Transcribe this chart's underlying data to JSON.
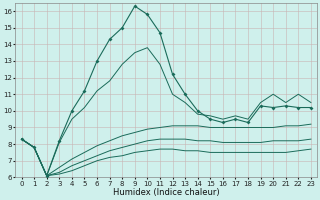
{
  "x": [
    0,
    1,
    2,
    3,
    4,
    5,
    6,
    7,
    8,
    9,
    10,
    11,
    12,
    13,
    14,
    15,
    16,
    17,
    18,
    19,
    20,
    21,
    22,
    23
  ],
  "line_main": [
    8.3,
    7.8,
    6.1,
    8.2,
    10.0,
    11.2,
    13.0,
    14.3,
    15.0,
    16.3,
    15.8,
    14.7,
    12.2,
    11.0,
    10.0,
    9.5,
    9.3,
    9.5,
    9.3,
    10.3,
    10.2,
    10.3,
    10.2,
    10.2
  ],
  "line_upper": [
    8.3,
    7.8,
    6.1,
    8.1,
    9.5,
    10.2,
    11.2,
    11.8,
    12.8,
    13.5,
    13.8,
    12.8,
    11.0,
    10.5,
    9.8,
    9.7,
    9.5,
    9.7,
    9.5,
    10.5,
    11.0,
    10.5,
    11.0,
    10.5
  ],
  "line_ref1": [
    8.3,
    7.8,
    6.1,
    6.6,
    7.1,
    7.5,
    7.9,
    8.2,
    8.5,
    8.7,
    8.9,
    9.0,
    9.1,
    9.1,
    9.1,
    9.0,
    9.0,
    9.0,
    9.0,
    9.0,
    9.0,
    9.1,
    9.1,
    9.2
  ],
  "line_ref2": [
    8.3,
    7.8,
    6.1,
    6.3,
    6.7,
    7.0,
    7.3,
    7.6,
    7.8,
    8.0,
    8.2,
    8.3,
    8.3,
    8.3,
    8.2,
    8.2,
    8.1,
    8.1,
    8.1,
    8.1,
    8.2,
    8.2,
    8.2,
    8.3
  ],
  "line_ref3": [
    8.3,
    7.8,
    6.1,
    6.2,
    6.4,
    6.7,
    7.0,
    7.2,
    7.3,
    7.5,
    7.6,
    7.7,
    7.7,
    7.6,
    7.6,
    7.5,
    7.5,
    7.5,
    7.5,
    7.5,
    7.5,
    7.5,
    7.6,
    7.7
  ],
  "bg_color": "#cff0ec",
  "line_color": "#1a6b5a",
  "grid_color": "#c8b4b4",
  "xlabel": "Humidex (Indice chaleur)",
  "ylim": [
    6,
    16.5
  ],
  "xlim": [
    -0.5,
    23.5
  ],
  "yticks": [
    6,
    7,
    8,
    9,
    10,
    11,
    12,
    13,
    14,
    15,
    16
  ],
  "xticks": [
    0,
    1,
    2,
    3,
    4,
    5,
    6,
    7,
    8,
    9,
    10,
    11,
    12,
    13,
    14,
    15,
    16,
    17,
    18,
    19,
    20,
    21,
    22,
    23
  ],
  "xlabel_fontsize": 6.0,
  "tick_fontsize": 5.0
}
